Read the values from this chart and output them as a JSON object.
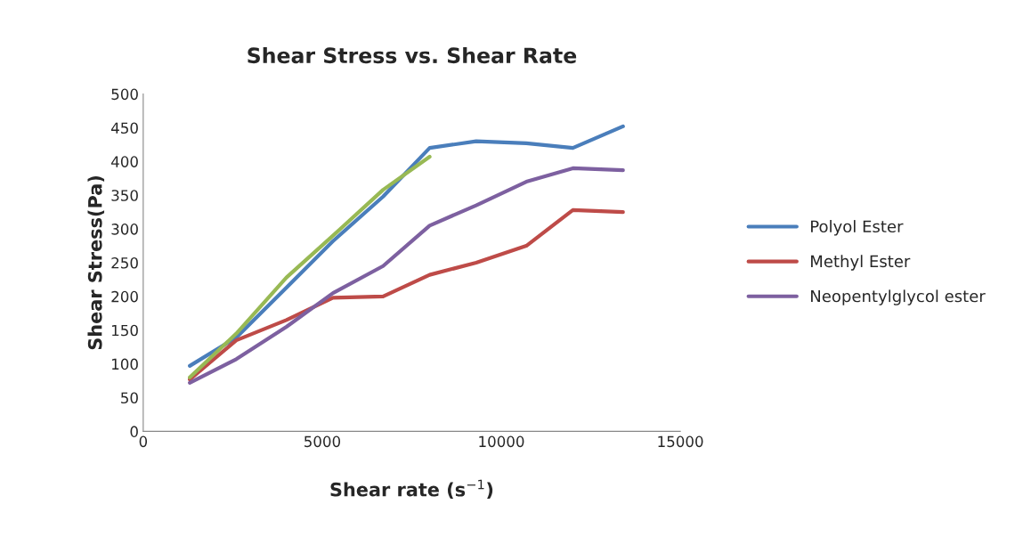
{
  "chart_data": {
    "type": "line",
    "title": "Shear Stress vs. Shear Rate",
    "xlabel": "Shear rate (s$^{−1}$)",
    "ylabel": "Shear Stress(Pa)",
    "x": [
      1300,
      2600,
      4000,
      5300,
      6700,
      8000,
      9300,
      10700,
      12000,
      13400
    ],
    "series": [
      {
        "name": "Polyol Ester",
        "color": "#4a7ebb",
        "values": [
          97,
          139,
          213,
          282,
          348,
          420,
          430,
          427,
          420,
          452
        ]
      },
      {
        "name": "Methyl Ester",
        "color": "#be4b48",
        "values": [
          77,
          135,
          165,
          198,
          200,
          232,
          250,
          275,
          328,
          325
        ]
      },
      {
        "color": "#98b954",
        "values": [
          80,
          145,
          228,
          290,
          358,
          407,
          null,
          null,
          null,
          null
        ]
      },
      {
        "name": "Neopentylglycol ester",
        "color": "#7d60a0",
        "values": [
          72,
          107,
          155,
          205,
          245,
          305,
          335,
          370,
          390,
          387
        ]
      }
    ],
    "xlim": [
      0,
      15000
    ],
    "xticks": [
      0,
      5000,
      10000,
      15000
    ],
    "ylim": [
      0,
      500
    ],
    "yticks": [
      0,
      50,
      100,
      150,
      200,
      250,
      300,
      350,
      400,
      450,
      500
    ],
    "grid": false,
    "legend": "right",
    "marker": "none",
    "line_style": "solid"
  }
}
